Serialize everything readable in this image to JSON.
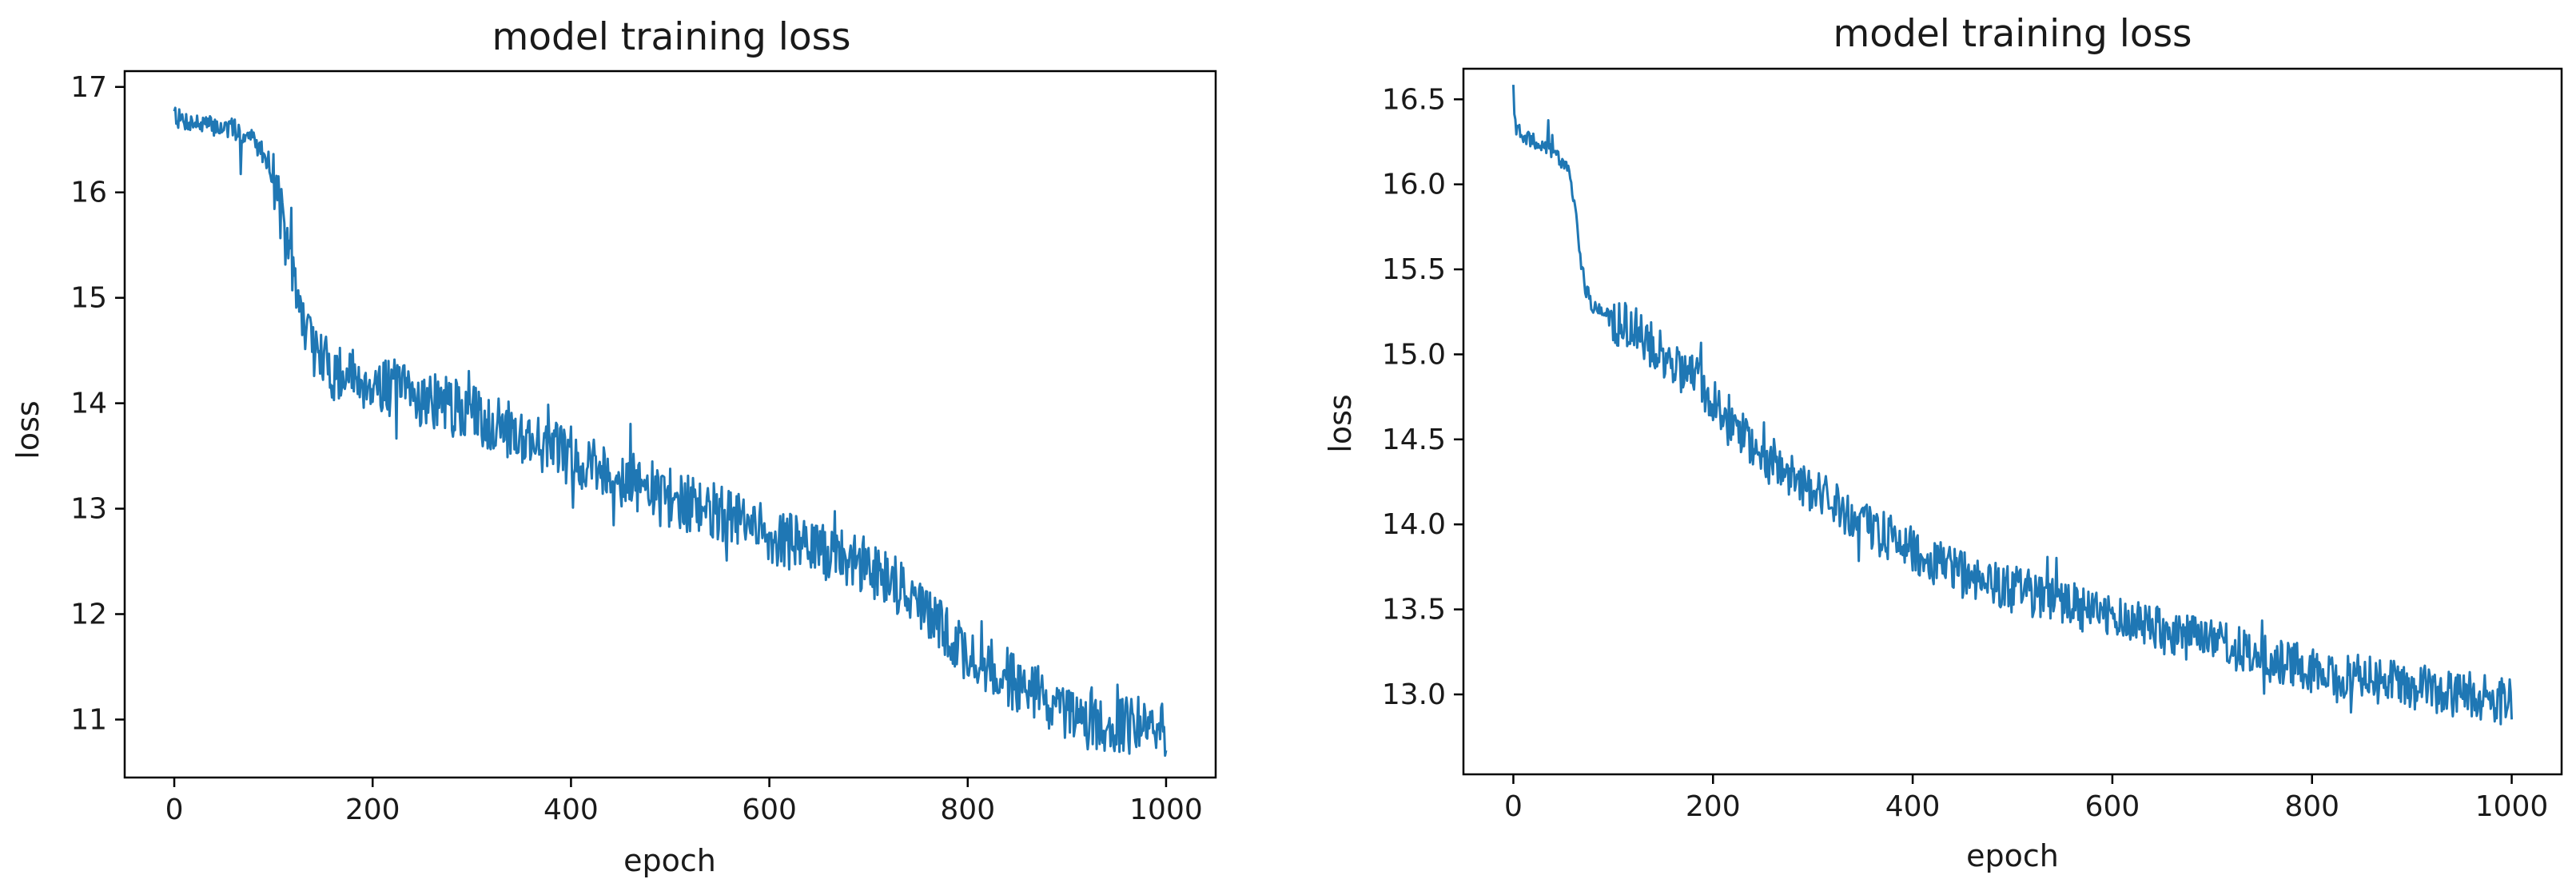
{
  "chart_data": [
    {
      "type": "line",
      "title": "model training loss",
      "xlabel": "epoch",
      "ylabel": "loss",
      "xlim": [
        -50,
        1050
      ],
      "ylim": [
        10.45,
        17.15
      ],
      "x_ticks": [
        0,
        200,
        400,
        600,
        800,
        1000
      ],
      "y_ticks": [
        11,
        12,
        13,
        14,
        15,
        16,
        17
      ],
      "y_tick_labels": [
        "11",
        "12",
        "13",
        "14",
        "15",
        "16",
        "17"
      ],
      "grid": false,
      "color": "#1f77b4",
      "noise_amplitude": 0.28,
      "series": [
        {
          "x": [
            0,
            3,
            10,
            30,
            60,
            80,
            95,
            105,
            115,
            125,
            135,
            145,
            160,
            200,
            250,
            300,
            350,
            400,
            450,
            500,
            550,
            600,
            650,
            700,
            720,
            740,
            760,
            780,
            800,
            850,
            880,
            900,
            950,
            1000
          ],
          "y": [
            16.82,
            16.7,
            16.68,
            16.64,
            16.6,
            16.5,
            16.3,
            15.95,
            15.4,
            14.95,
            14.65,
            14.45,
            14.3,
            14.2,
            14.05,
            13.9,
            13.7,
            13.5,
            13.3,
            13.1,
            12.95,
            12.75,
            12.6,
            12.45,
            12.35,
            12.2,
            12.0,
            11.8,
            11.6,
            11.35,
            11.2,
            11.0,
            10.95,
            10.9
          ]
        }
      ]
    },
    {
      "type": "line",
      "title": "model training loss",
      "xlabel": "epoch",
      "ylabel": "loss",
      "xlim": [
        -50,
        1050
      ],
      "ylim": [
        12.53,
        16.68
      ],
      "x_ticks": [
        0,
        200,
        400,
        600,
        800,
        1000
      ],
      "y_ticks": [
        13.0,
        13.5,
        14.0,
        14.5,
        15.0,
        15.5,
        16.0,
        16.5
      ],
      "y_tick_labels": [
        "13.0",
        "13.5",
        "14.0",
        "14.5",
        "15.0",
        "15.5",
        "16.0",
        "16.5"
      ],
      "grid": false,
      "color": "#1f77b4",
      "noise_amplitude": 0.14,
      "series": [
        {
          "x": [
            0,
            2,
            8,
            20,
            40,
            55,
            62,
            68,
            72,
            80,
            100,
            120,
            150,
            180,
            200,
            250,
            300,
            350,
            400,
            450,
            500,
            550,
            600,
            650,
            700,
            750,
            800,
            850,
            900,
            950,
            1000
          ],
          "y": [
            16.5,
            16.35,
            16.28,
            16.25,
            16.2,
            16.1,
            15.85,
            15.55,
            15.4,
            15.28,
            15.2,
            15.15,
            15.0,
            14.85,
            14.75,
            14.4,
            14.2,
            14.0,
            13.85,
            13.7,
            13.62,
            13.55,
            13.45,
            13.38,
            13.3,
            13.22,
            13.15,
            13.1,
            13.05,
            13.0,
            12.95
          ]
        }
      ]
    }
  ]
}
